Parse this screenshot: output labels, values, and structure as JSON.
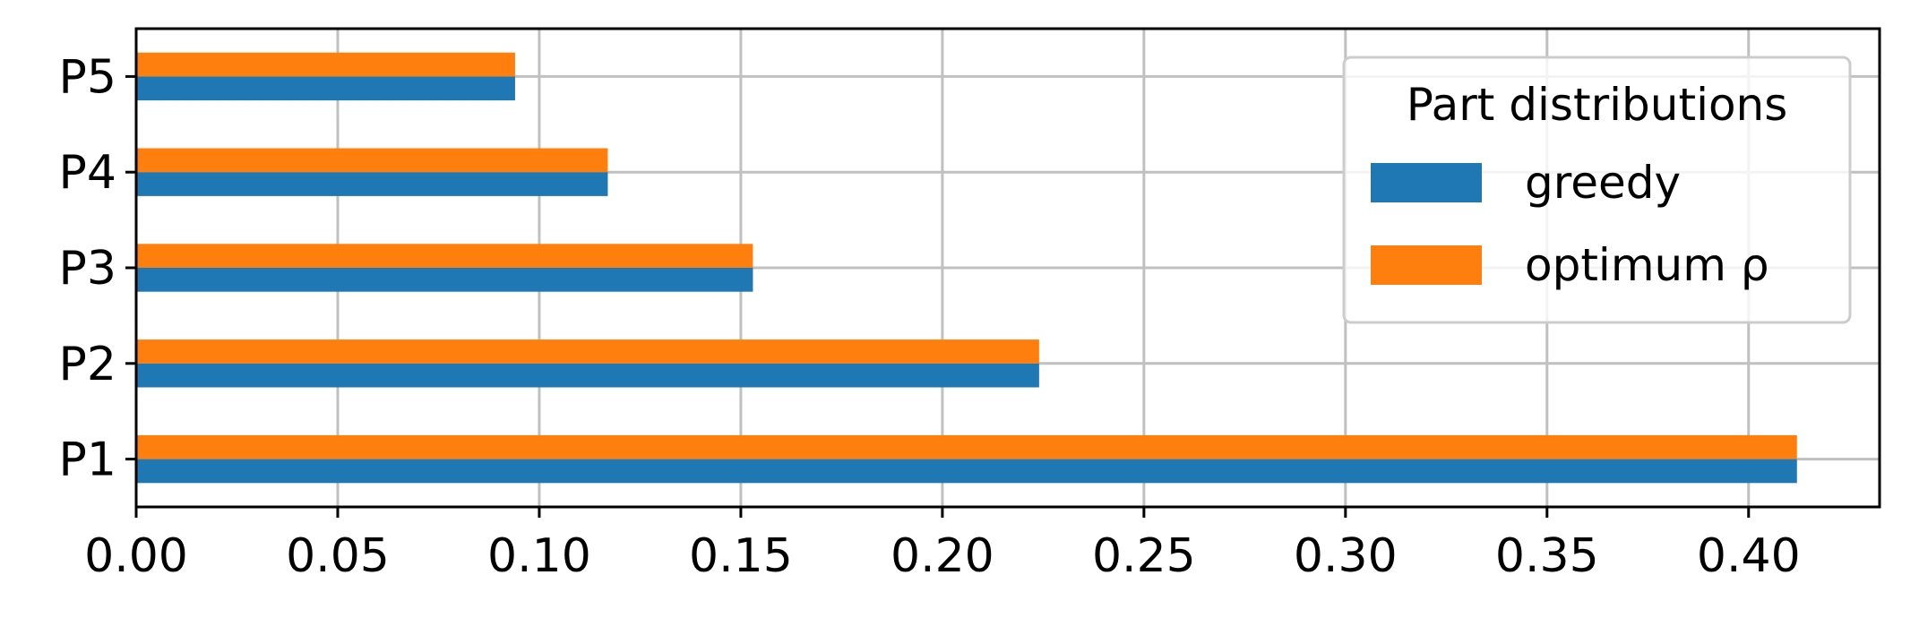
{
  "chart_data": {
    "type": "bar",
    "orientation": "horizontal",
    "categories": [
      "P1",
      "P2",
      "P3",
      "P4",
      "P5"
    ],
    "series": [
      {
        "name": "greedy",
        "color": "#1f77b4",
        "values": [
          0.412,
          0.224,
          0.153,
          0.117,
          0.094
        ]
      },
      {
        "name": "optimum ρ",
        "color": "#ff7f0e",
        "values": [
          0.412,
          0.224,
          0.153,
          0.117,
          0.094
        ]
      }
    ],
    "title": "",
    "xlabel": "",
    "ylabel": "",
    "xlim": [
      0,
      0.4325
    ],
    "xticks": [
      0.0,
      0.05,
      0.1,
      0.15,
      0.2,
      0.25,
      0.3,
      0.35,
      0.4
    ],
    "xtick_labels": [
      "0.00",
      "0.05",
      "0.10",
      "0.15",
      "0.20",
      "0.25",
      "0.30",
      "0.35",
      "0.40"
    ],
    "grid": true,
    "legend": {
      "title": "Part distributions",
      "placement": "top-right"
    }
  }
}
